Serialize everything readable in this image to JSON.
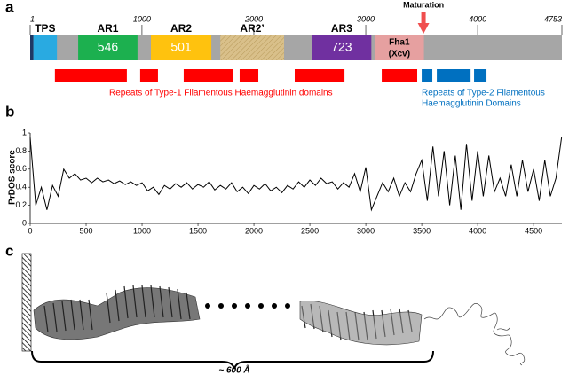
{
  "panel_labels": [
    "a",
    "b",
    "c"
  ],
  "domain_map": {
    "ticks": [
      1,
      1000,
      2000,
      3000,
      4000,
      4753
    ],
    "bar_color": "#a6a6a6",
    "domains": [
      {
        "start": 1,
        "end": 30,
        "color": "#1f3864"
      },
      {
        "name": "TPS",
        "start": 30,
        "end": 240,
        "color": "#29aae1"
      },
      {
        "name": "AR1",
        "start": 430,
        "end": 960,
        "color": "#1cb04f",
        "label": "546"
      },
      {
        "name": "AR2",
        "start": 1080,
        "end": 1620,
        "color": "#ffc20e",
        "label": "501"
      },
      {
        "name": "AR2’",
        "start": 1700,
        "end": 2270,
        "color": "#d9c08a",
        "hatched": true
      },
      {
        "name": "AR3",
        "start": 2520,
        "end": 3050,
        "color": "#7030a0",
        "label": "723"
      },
      {
        "start": 3080,
        "end": 3520,
        "color": "#e6a0a0",
        "label": [
          "Fha1",
          "(Xcv)"
        ]
      }
    ],
    "maturation": {
      "label": "Maturation",
      "position": 3516,
      "color": "#f04e4e"
    },
    "repeats": [
      {
        "caption": [
          "Repeats of Type-1 Filamentous Haemagglutinin domains"
        ],
        "color": "#ff0000",
        "ranges": [
          [
            222,
            865
          ],
          [
            984,
            1143
          ],
          [
            1373,
            1817
          ],
          [
            1873,
            2040
          ],
          [
            2365,
            2810
          ],
          [
            3143,
            3460
          ]
        ]
      },
      {
        "caption": [
          "Repeats of Type-2 Filamentous",
          "Haemagglutinin Domains"
        ],
        "color": "#0070c0",
        "ranges": [
          [
            3500,
            3595
          ],
          [
            3635,
            3937
          ],
          [
            3968,
            4079
          ]
        ]
      }
    ]
  },
  "chart_data": {
    "type": "line",
    "y_label": "PrDOS score",
    "color": "#000000",
    "x": [
      0,
      50,
      100,
      150,
      200,
      250,
      300,
      350,
      400,
      450,
      500,
      550,
      600,
      650,
      700,
      750,
      800,
      850,
      900,
      950,
      1000,
      1050,
      1100,
      1150,
      1200,
      1250,
      1300,
      1350,
      1400,
      1450,
      1500,
      1550,
      1600,
      1650,
      1700,
      1750,
      1800,
      1850,
      1900,
      1950,
      2000,
      2050,
      2100,
      2150,
      2200,
      2250,
      2300,
      2350,
      2400,
      2450,
      2500,
      2550,
      2600,
      2650,
      2700,
      2750,
      2800,
      2850,
      2900,
      2950,
      3000,
      3050,
      3100,
      3150,
      3200,
      3250,
      3300,
      3350,
      3400,
      3450,
      3500,
      3550,
      3600,
      3650,
      3700,
      3750,
      3800,
      3850,
      3900,
      3950,
      4000,
      4050,
      4100,
      4150,
      4200,
      4250,
      4300,
      4350,
      4400,
      4450,
      4500,
      4550,
      4600,
      4650,
      4700,
      4750
    ],
    "values": [
      0.95,
      0.2,
      0.4,
      0.15,
      0.42,
      0.3,
      0.6,
      0.5,
      0.55,
      0.48,
      0.5,
      0.45,
      0.5,
      0.46,
      0.48,
      0.44,
      0.47,
      0.43,
      0.46,
      0.42,
      0.45,
      0.36,
      0.4,
      0.32,
      0.42,
      0.38,
      0.44,
      0.4,
      0.45,
      0.38,
      0.43,
      0.4,
      0.46,
      0.37,
      0.42,
      0.38,
      0.45,
      0.35,
      0.4,
      0.33,
      0.42,
      0.38,
      0.44,
      0.36,
      0.4,
      0.34,
      0.42,
      0.38,
      0.46,
      0.4,
      0.48,
      0.42,
      0.5,
      0.44,
      0.46,
      0.38,
      0.45,
      0.4,
      0.55,
      0.35,
      0.62,
      0.15,
      0.3,
      0.45,
      0.35,
      0.5,
      0.3,
      0.45,
      0.35,
      0.55,
      0.7,
      0.25,
      0.85,
      0.3,
      0.8,
      0.2,
      0.75,
      0.15,
      0.88,
      0.25,
      0.8,
      0.3,
      0.75,
      0.35,
      0.5,
      0.3,
      0.65,
      0.3,
      0.7,
      0.35,
      0.6,
      0.25,
      0.7,
      0.3,
      0.5,
      0.95
    ],
    "xlim": [
      0,
      4753
    ],
    "ylim": [
      0,
      1
    ],
    "xticks": [
      0,
      500,
      1000,
      1500,
      2000,
      2500,
      3000,
      3500,
      4000,
      4500
    ],
    "yticks": [
      0,
      0.2,
      0.4,
      0.6,
      0.8,
      1
    ]
  },
  "structure": {
    "scale_label": "~ 600 Å"
  }
}
